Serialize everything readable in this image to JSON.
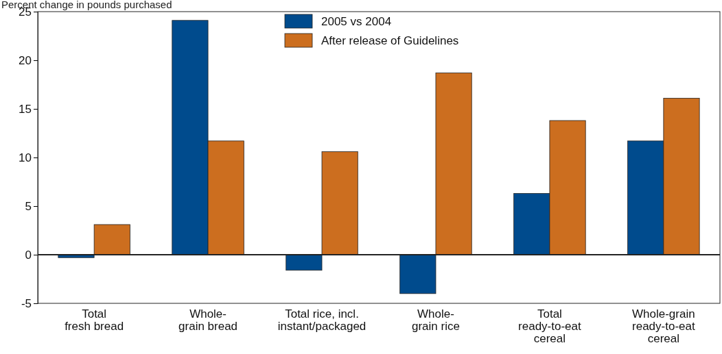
{
  "chart_data": {
    "type": "bar",
    "ylabel": "Percent change in pounds purchased",
    "categories": [
      "Total\nfresh bread",
      "Whole-\ngrain bread",
      "Total rice, incl.\ninstant/packaged",
      "Whole-\ngrain rice",
      "Total\nready-to-eat\ncereal",
      "Whole-grain\nready-to-eat\ncereal"
    ],
    "series": [
      {
        "name": "2005 vs 2004",
        "color": "#004b8d",
        "values": [
          -0.3,
          24.1,
          -1.6,
          -4.0,
          6.3,
          11.7
        ]
      },
      {
        "name": "After release of Guidelines",
        "color": "#cc6e1f",
        "values": [
          3.1,
          11.7,
          10.6,
          18.7,
          13.8,
          16.1
        ]
      }
    ],
    "ylim": [
      -5,
      25
    ],
    "yticks": [
      -5,
      0,
      5,
      10,
      15,
      20,
      25
    ],
    "legend": "top"
  }
}
